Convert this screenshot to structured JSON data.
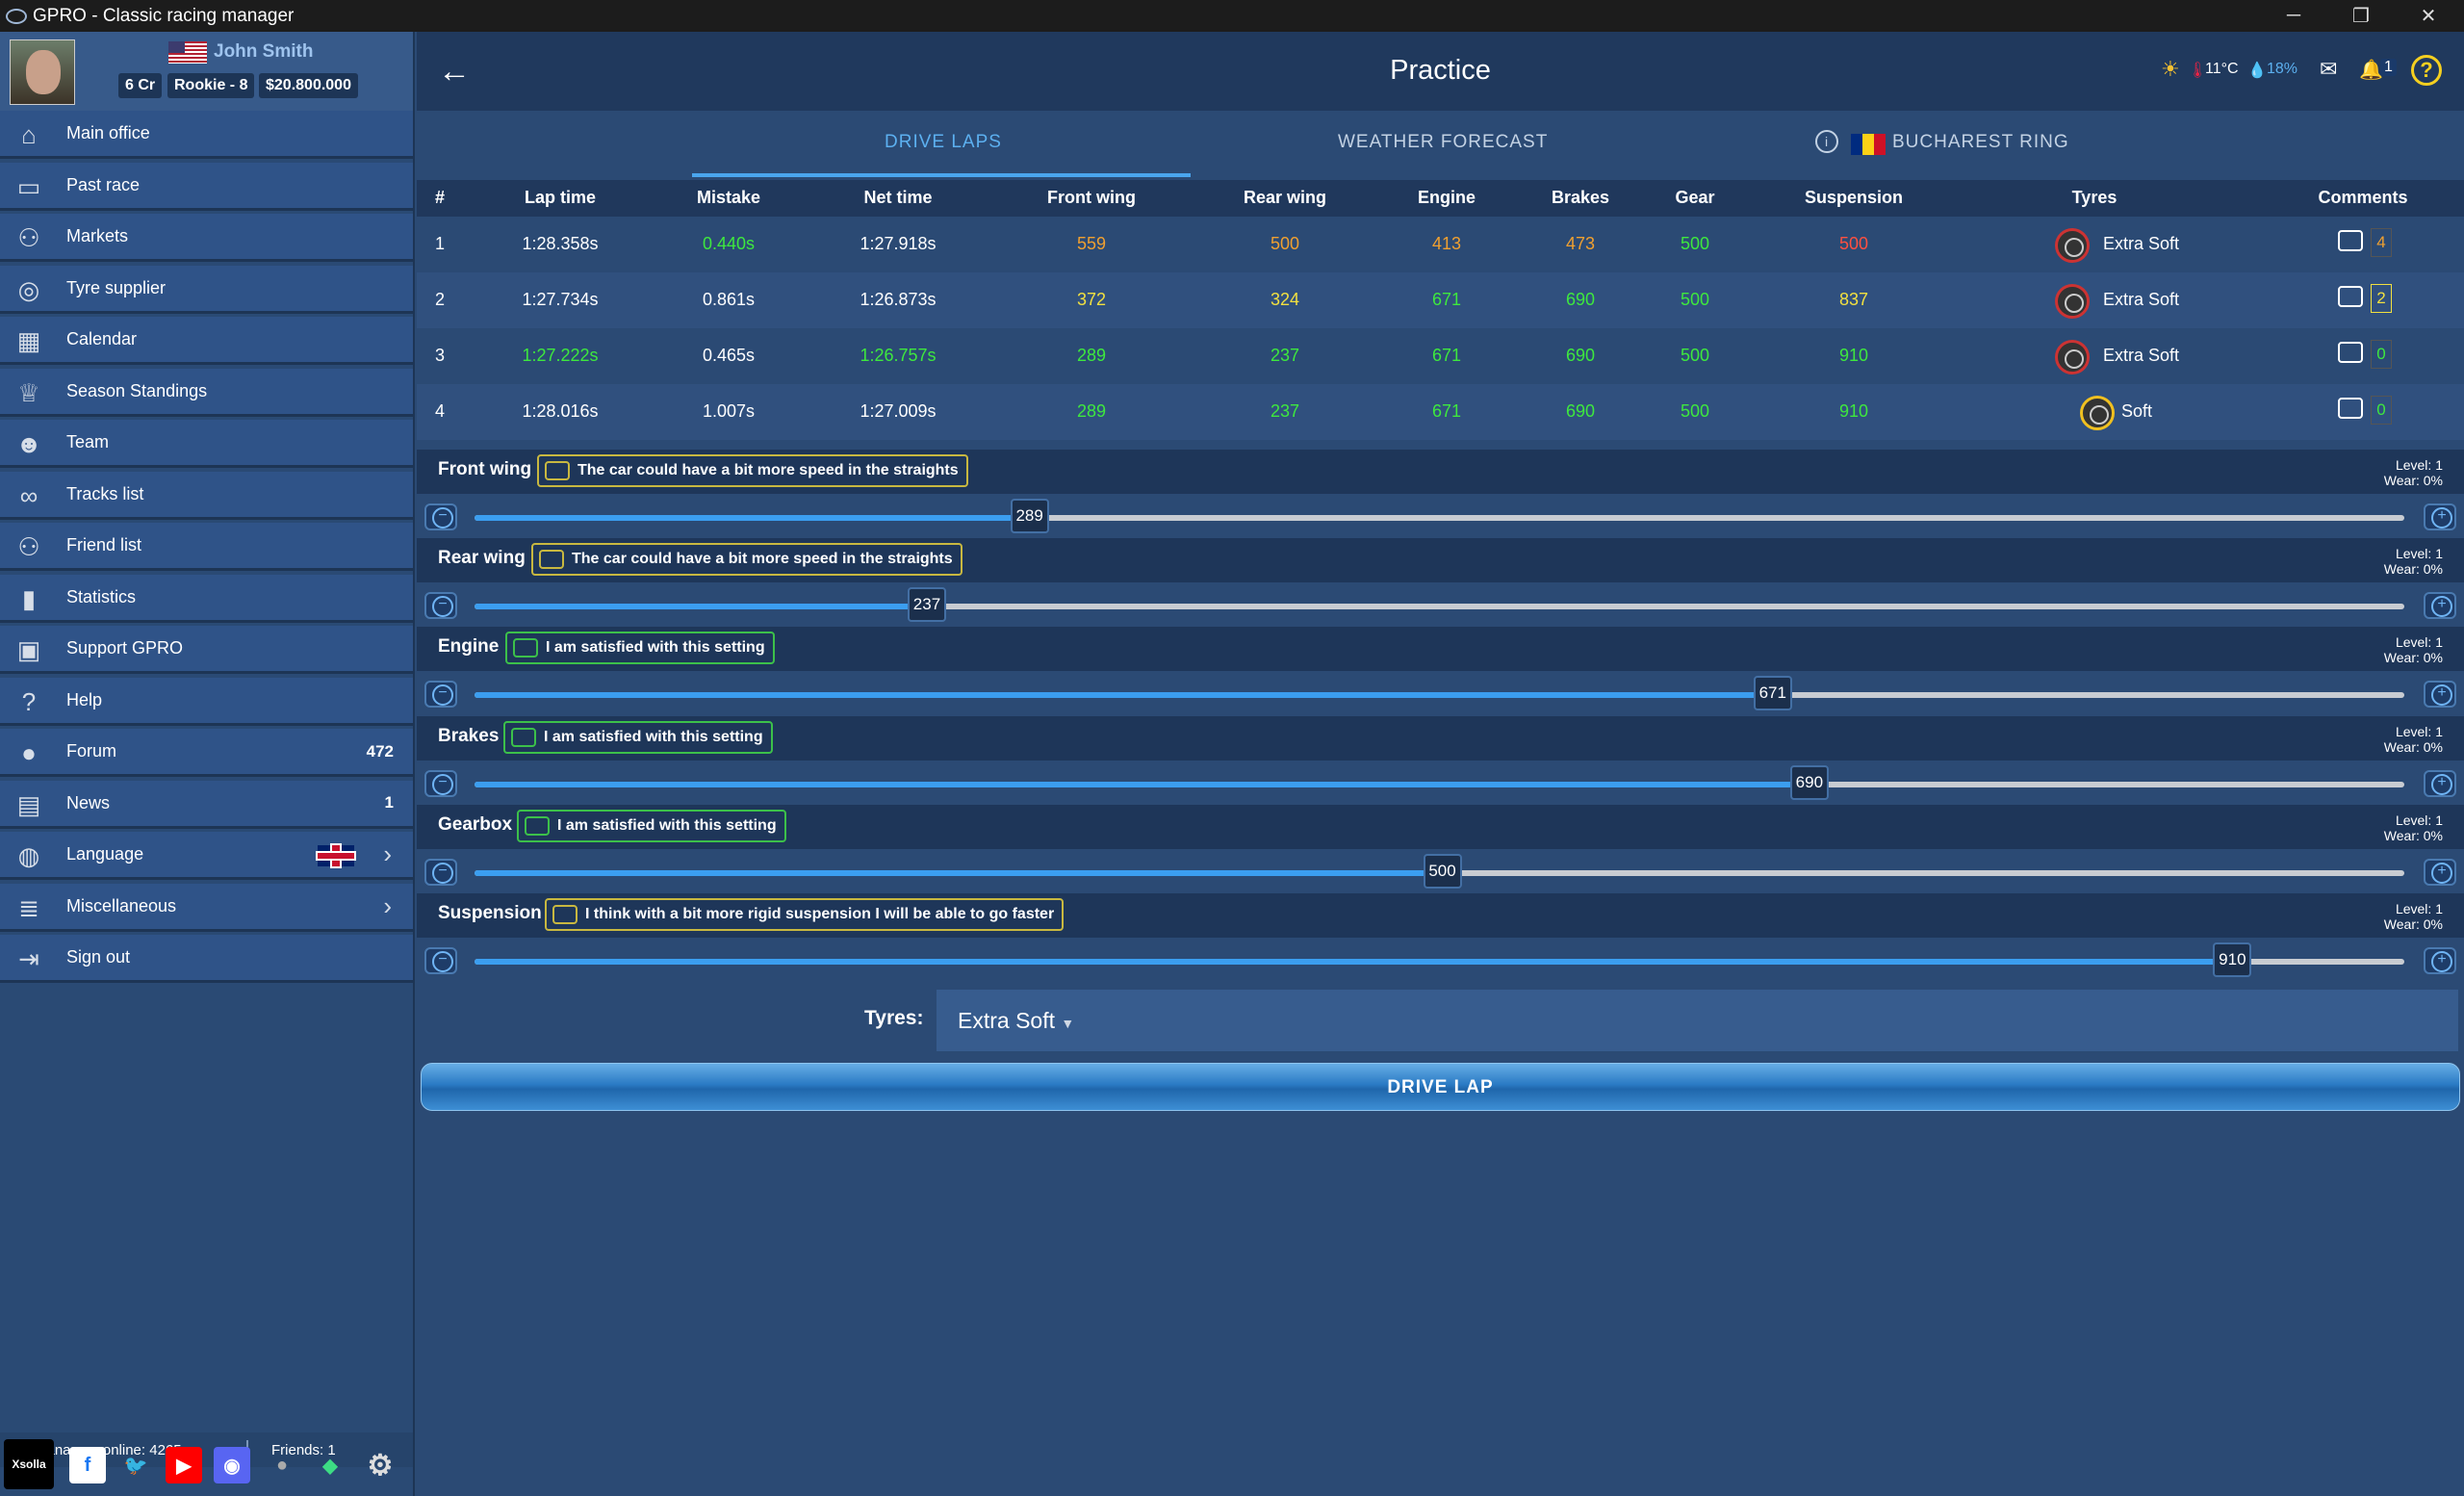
{
  "window": {
    "title": "GPRO - Classic racing manager"
  },
  "profile": {
    "name": "John Smith",
    "credits": "6 Cr",
    "level": "Rookie - 8",
    "money": "$20.800.000"
  },
  "menu": [
    {
      "label": "Main office",
      "icon": "building-icon"
    },
    {
      "label": "Past race",
      "icon": "car-icon"
    },
    {
      "label": "Markets",
      "icon": "person-icon"
    },
    {
      "label": "Tyre supplier",
      "icon": "tyre-icon"
    },
    {
      "label": "Calendar",
      "icon": "calendar-icon"
    },
    {
      "label": "Season Standings",
      "icon": "trophy-icon"
    },
    {
      "label": "Team",
      "icon": "team-icon"
    },
    {
      "label": "Tracks list",
      "icon": "track-icon"
    },
    {
      "label": "Friend list",
      "icon": "friends-icon"
    },
    {
      "label": "Statistics",
      "icon": "bar-chart-icon"
    },
    {
      "label": "Support GPRO",
      "icon": "money-icon"
    },
    {
      "label": "Help",
      "icon": "help-icon"
    },
    {
      "label": "Forum",
      "icon": "chat-icon",
      "count": "472"
    },
    {
      "label": "News",
      "icon": "news-icon",
      "count": "1"
    },
    {
      "label": "Language",
      "icon": "globe-icon"
    },
    {
      "label": "Miscellaneous",
      "icon": "list-icon"
    },
    {
      "label": "Sign out",
      "icon": "sign-out-icon"
    }
  ],
  "footer": {
    "online": "Managers online: 4265",
    "friends": "Friends: 1",
    "xsolla": "Xsolla"
  },
  "header": {
    "title": "Practice",
    "temperature": "11°C",
    "humidity": "18%",
    "notifications": "1"
  },
  "tabs": {
    "drive_laps": "DRIVE LAPS",
    "weather": "WEATHER FORECAST",
    "track": "BUCHAREST RING"
  },
  "table": {
    "headers": [
      "#",
      "Lap time",
      "Mistake",
      "Net time",
      "Front wing",
      "Rear wing",
      "Engine",
      "Brakes",
      "Gear",
      "Suspension",
      "Tyres",
      "Comments"
    ],
    "rows": [
      {
        "num": "1",
        "lap": "1:28.358s",
        "mistake": "0.440s",
        "net": "1:27.918s",
        "fw": "559",
        "rw": "500",
        "eng": "413",
        "brk": "473",
        "gear": "500",
        "susp": "500",
        "tyre": "Extra Soft",
        "comments": "4"
      },
      {
        "num": "2",
        "lap": "1:27.734s",
        "mistake": "0.861s",
        "net": "1:26.873s",
        "fw": "372",
        "rw": "324",
        "eng": "671",
        "brk": "690",
        "gear": "500",
        "susp": "837",
        "tyre": "Extra Soft",
        "comments": "2"
      },
      {
        "num": "3",
        "lap": "1:27.222s",
        "mistake": "0.465s",
        "net": "1:26.757s",
        "fw": "289",
        "rw": "237",
        "eng": "671",
        "brk": "690",
        "gear": "500",
        "susp": "910",
        "tyre": "Extra Soft",
        "comments": "0"
      },
      {
        "num": "4",
        "lap": "1:28.016s",
        "mistake": "1.007s",
        "net": "1:27.009s",
        "fw": "289",
        "rw": "237",
        "eng": "671",
        "brk": "690",
        "gear": "500",
        "susp": "910",
        "tyre": "Soft",
        "comments": "0"
      }
    ]
  },
  "settings": [
    {
      "name": "Front wing",
      "comment": "The car could have a bit more speed in the straights",
      "level": "Level: 1",
      "wear": "Wear: 0%",
      "value": "289",
      "fraction": 0.2876
    },
    {
      "name": "Rear wing",
      "comment": "The car could have a bit more speed in the straights",
      "level": "Level: 1",
      "wear": "Wear: 0%",
      "value": "237",
      "fraction": 0.2344
    },
    {
      "name": "Engine",
      "comment": "I am satisfied with this setting",
      "level": "Level: 1",
      "wear": "Wear: 0%",
      "value": "671",
      "fraction": 0.6727
    },
    {
      "name": "Brakes",
      "comment": "I am satisfied with this setting",
      "level": "Level: 1",
      "wear": "Wear: 0%",
      "value": "690",
      "fraction": 0.6917
    },
    {
      "name": "Gearbox",
      "comment": "I am satisfied with this setting",
      "level": "Level: 1",
      "wear": "Wear: 0%",
      "value": "500",
      "fraction": 0.5015
    },
    {
      "name": "Suspension",
      "comment": "I think with a bit more rigid suspension I will be able to go faster",
      "level": "Level: 1",
      "wear": "Wear: 0%",
      "value": "910",
      "fraction": 0.9109
    }
  ],
  "tyres": {
    "label": "Tyres:",
    "selected": "Extra Soft"
  },
  "drive_button": "DRIVE LAP",
  "colors": {
    "green": "#3ee83e",
    "orange": "#f0a030",
    "yellow": "#f2e040",
    "red": "#ff5040",
    "comment_yellow": "#c8b840",
    "comment_green": "#3cc04a"
  }
}
